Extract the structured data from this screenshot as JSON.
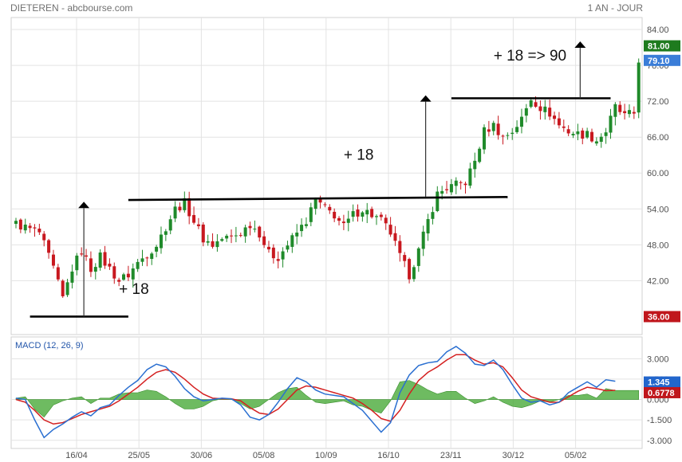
{
  "header": {
    "left": "DIETEREN - abcbourse.com",
    "right": "1 AN - JOUR"
  },
  "chart_data": {
    "type": "candlestick",
    "grid": true,
    "x_ticks": [
      "16/04",
      "25/05",
      "30/06",
      "05/08",
      "10/09",
      "16/10",
      "23/11",
      "30/12",
      "05/02"
    ],
    "price_panel": {
      "ylim": [
        33,
        86
      ],
      "y_ticks": [
        "84.00",
        "78.00",
        "72.00",
        "66.00",
        "60.00",
        "54.00",
        "48.00",
        "42.00"
      ],
      "close_path": [
        [
          0,
          51.5
        ],
        [
          5,
          50
        ],
        [
          8,
          44
        ],
        [
          10,
          39
        ],
        [
          12,
          44
        ],
        [
          14,
          47
        ],
        [
          16,
          44
        ],
        [
          18,
          46
        ],
        [
          20,
          44
        ],
        [
          22,
          42
        ],
        [
          24,
          43
        ],
        [
          26,
          45
        ],
        [
          28,
          46.5
        ],
        [
          30,
          48
        ],
        [
          32,
          51
        ],
        [
          34,
          54
        ],
        [
          36,
          55
        ],
        [
          38,
          52
        ],
        [
          40,
          49
        ],
        [
          42,
          48
        ],
        [
          44,
          49
        ],
        [
          46,
          49.3
        ],
        [
          48,
          50
        ],
        [
          50,
          51.5
        ],
        [
          52,
          50
        ],
        [
          54,
          46.5
        ],
        [
          56,
          46
        ],
        [
          58,
          48
        ],
        [
          60,
          50
        ],
        [
          62,
          52
        ],
        [
          64,
          55.5
        ],
        [
          66,
          54
        ],
        [
          68,
          53
        ],
        [
          70,
          51
        ],
        [
          72,
          53
        ],
        [
          74,
          54
        ],
        [
          76,
          53
        ],
        [
          78,
          52
        ],
        [
          80,
          50
        ],
        [
          82,
          46
        ],
        [
          84,
          43
        ],
        [
          86,
          47
        ],
        [
          88,
          52
        ],
        [
          90,
          56.5
        ],
        [
          92,
          57.5
        ],
        [
          94,
          58
        ],
        [
          96,
          58.5
        ],
        [
          98,
          62
        ],
        [
          100,
          67
        ],
        [
          102,
          68
        ],
        [
          104,
          66
        ],
        [
          106,
          67
        ],
        [
          108,
          69
        ],
        [
          110,
          72.5
        ],
        [
          112,
          71
        ],
        [
          114,
          70
        ],
        [
          116,
          68
        ],
        [
          118,
          67
        ],
        [
          120,
          66.5
        ],
        [
          122,
          66.5
        ],
        [
          124,
          65.5
        ],
        [
          126,
          67
        ],
        [
          128,
          71
        ],
        [
          130,
          69.5
        ],
        [
          132,
          70
        ],
        [
          133,
          79
        ]
      ],
      "tags": [
        {
          "label": "81.00",
          "value": 81,
          "color": "#1e7b1e"
        },
        {
          "label": "79.10",
          "value": 79.1,
          "color": "#3a7dd8"
        },
        {
          "label": "36.00",
          "value": 36,
          "color": "#c0161c"
        }
      ],
      "lines": [
        {
          "from": [
            3,
            36
          ],
          "to": [
            24,
            36
          ]
        },
        {
          "from": [
            24,
            55.5
          ],
          "to": [
            105,
            56
          ]
        },
        {
          "from": [
            93,
            72.5
          ],
          "to": [
            127,
            72.5
          ]
        }
      ],
      "arrows": [
        {
          "x": 14.5,
          "from": 36,
          "to": 55.2
        },
        {
          "x": 87.5,
          "from": 56,
          "to": 73
        },
        {
          "x": 120.5,
          "from": 72.5,
          "to": 82
        }
      ],
      "annotations": [
        {
          "text": "+ 18",
          "x": 22,
          "y": 39.8
        },
        {
          "text": "+ 18",
          "x": 70,
          "y": 62.2
        },
        {
          "text": "+ 18   => 90",
          "x": 102,
          "y": 78.8
        }
      ]
    },
    "macd_panel": {
      "title": "MACD (12, 26, 9)",
      "ylim": [
        -3.6,
        4.6
      ],
      "y_ticks": [
        "3.000",
        "1.500",
        "0.000",
        "-1.500",
        "-3.000"
      ],
      "macd": [
        [
          0,
          0.1
        ],
        [
          2,
          0
        ],
        [
          4,
          -1.5
        ],
        [
          6,
          -2.8
        ],
        [
          8,
          -2.2
        ],
        [
          10,
          -1.8
        ],
        [
          12,
          -1.3
        ],
        [
          14,
          -0.9
        ],
        [
          16,
          -1.2
        ],
        [
          18,
          -0.6
        ],
        [
          20,
          -0.4
        ],
        [
          22,
          0.3
        ],
        [
          24,
          0.9
        ],
        [
          26,
          1.4
        ],
        [
          28,
          2.2
        ],
        [
          30,
          2.6
        ],
        [
          32,
          2.4
        ],
        [
          34,
          1.7
        ],
        [
          36,
          0.8
        ],
        [
          38,
          0.2
        ],
        [
          40,
          -0.1
        ],
        [
          42,
          0
        ],
        [
          44,
          0.1
        ],
        [
          46,
          0.05
        ],
        [
          48,
          -0.4
        ],
        [
          50,
          -1.3
        ],
        [
          52,
          -1.5
        ],
        [
          54,
          -1.1
        ],
        [
          56,
          -0.2
        ],
        [
          58,
          0.8
        ],
        [
          60,
          1.6
        ],
        [
          62,
          1.3
        ],
        [
          64,
          0.7
        ],
        [
          66,
          0.4
        ],
        [
          68,
          0.3
        ],
        [
          70,
          0.2
        ],
        [
          72,
          -0.3
        ],
        [
          74,
          -0.8
        ],
        [
          76,
          -1.6
        ],
        [
          78,
          -2.4
        ],
        [
          80,
          -1.7
        ],
        [
          82,
          0.5
        ],
        [
          84,
          1.8
        ],
        [
          86,
          2.5
        ],
        [
          88,
          2.7
        ],
        [
          90,
          2.8
        ],
        [
          92,
          3.5
        ],
        [
          94,
          3.9
        ],
        [
          96,
          3.4
        ],
        [
          98,
          2.6
        ],
        [
          100,
          2.5
        ],
        [
          102,
          2.9
        ],
        [
          104,
          2.2
        ],
        [
          106,
          1.1
        ],
        [
          108,
          0.1
        ],
        [
          110,
          -0.2
        ],
        [
          112,
          -0.1
        ],
        [
          114,
          -0.4
        ],
        [
          116,
          -0.2
        ],
        [
          118,
          0.5
        ],
        [
          120,
          0.9
        ],
        [
          122,
          1.3
        ],
        [
          124,
          0.9
        ],
        [
          126,
          1.45
        ],
        [
          128,
          1.345
        ]
      ],
      "signal": [
        [
          0,
          0
        ],
        [
          2,
          -0.2
        ],
        [
          4,
          -0.8
        ],
        [
          6,
          -1.5
        ],
        [
          8,
          -1.8
        ],
        [
          10,
          -1.7
        ],
        [
          12,
          -1.4
        ],
        [
          14,
          -1.1
        ],
        [
          16,
          -0.9
        ],
        [
          18,
          -0.7
        ],
        [
          20,
          -0.5
        ],
        [
          22,
          -0.1
        ],
        [
          24,
          0.4
        ],
        [
          26,
          0.9
        ],
        [
          28,
          1.5
        ],
        [
          30,
          2
        ],
        [
          32,
          2.2
        ],
        [
          34,
          2
        ],
        [
          36,
          1.5
        ],
        [
          38,
          0.9
        ],
        [
          40,
          0.4
        ],
        [
          42,
          0.1
        ],
        [
          44,
          0.05
        ],
        [
          46,
          0.05
        ],
        [
          48,
          -0.1
        ],
        [
          50,
          -0.6
        ],
        [
          52,
          -1
        ],
        [
          54,
          -1.1
        ],
        [
          56,
          -0.7
        ],
        [
          58,
          0
        ],
        [
          60,
          0.7
        ],
        [
          62,
          1
        ],
        [
          64,
          0.9
        ],
        [
          66,
          0.7
        ],
        [
          68,
          0.5
        ],
        [
          70,
          0.3
        ],
        [
          72,
          0.1
        ],
        [
          74,
          -0.3
        ],
        [
          76,
          -0.8
        ],
        [
          78,
          -1.4
        ],
        [
          80,
          -1.6
        ],
        [
          82,
          -0.8
        ],
        [
          84,
          0.4
        ],
        [
          86,
          1.4
        ],
        [
          88,
          2
        ],
        [
          90,
          2.4
        ],
        [
          92,
          2.9
        ],
        [
          94,
          3.3
        ],
        [
          96,
          3.3
        ],
        [
          98,
          2.9
        ],
        [
          100,
          2.6
        ],
        [
          102,
          2.7
        ],
        [
          104,
          2.4
        ],
        [
          106,
          1.6
        ],
        [
          108,
          0.7
        ],
        [
          110,
          0.2
        ],
        [
          112,
          0
        ],
        [
          114,
          -0.2
        ],
        [
          116,
          -0.2
        ],
        [
          118,
          0.2
        ],
        [
          120,
          0.6
        ],
        [
          122,
          0.9
        ],
        [
          124,
          0.8
        ],
        [
          126,
          0.65
        ],
        [
          128,
          0.6778
        ]
      ],
      "tags": [
        {
          "label": "1.345",
          "value": 1.345,
          "color": "#2266cc"
        },
        {
          "label": "0.6778",
          "value": 0.6778,
          "color": "#c0161c"
        }
      ]
    }
  },
  "colors": {
    "up": "#1f8a2a",
    "down": "#c8181f",
    "grid": "#e3e3e3",
    "macd": "#2a6fd1",
    "signal": "#d42020",
    "hist": "#4aaa3a"
  }
}
